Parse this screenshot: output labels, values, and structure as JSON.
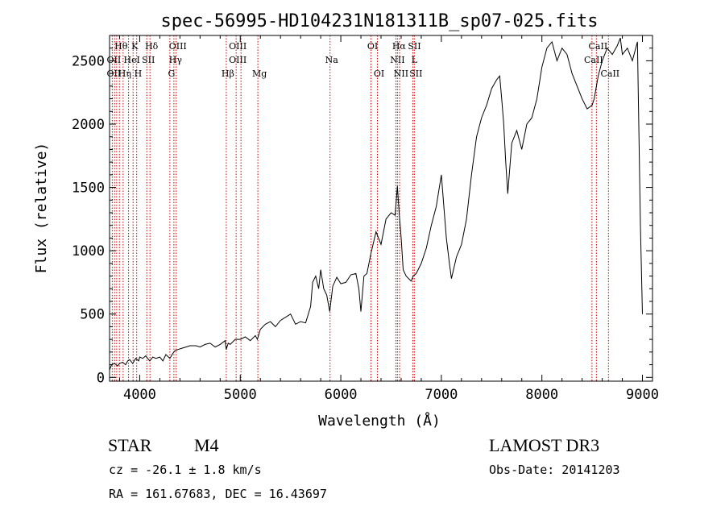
{
  "chart_data": {
    "type": "line",
    "title": "spec-56995-HD104231N181311B_sp07-025.fits",
    "xlabel": "Wavelength (Å)",
    "ylabel": "Flux (relative)",
    "xlim": [
      3700,
      9100
    ],
    "ylim": [
      -30,
      2700
    ],
    "xticks": [
      4000,
      5000,
      6000,
      7000,
      8000,
      9000
    ],
    "yticks": [
      0,
      500,
      1000,
      1500,
      2000,
      2500
    ],
    "series": [
      {
        "name": "spectrum",
        "x": [
          3700,
          3720,
          3750,
          3780,
          3800,
          3830,
          3860,
          3880,
          3900,
          3930,
          3960,
          3990,
          4000,
          4030,
          4060,
          4100,
          4130,
          4160,
          4200,
          4230,
          4260,
          4300,
          4330,
          4350,
          4380,
          4420,
          4460,
          4500,
          4560,
          4600,
          4650,
          4700,
          4750,
          4800,
          4850,
          4860,
          4880,
          4900,
          4950,
          5000,
          5050,
          5100,
          5150,
          5170,
          5200,
          5250,
          5300,
          5350,
          5400,
          5440,
          5460,
          5500,
          5550,
          5600,
          5650,
          5700,
          5720,
          5750,
          5780,
          5800,
          5830,
          5860,
          5890,
          5920,
          5960,
          6000,
          6050,
          6100,
          6150,
          6180,
          6200,
          6230,
          6260,
          6300,
          6350,
          6400,
          6450,
          6500,
          6540,
          6563,
          6580,
          6600,
          6620,
          6650,
          6700,
          6720,
          6750,
          6800,
          6850,
          6900,
          6950,
          7000,
          7030,
          7050,
          7080,
          7100,
          7150,
          7200,
          7250,
          7300,
          7350,
          7400,
          7450,
          7500,
          7550,
          7580,
          7600,
          7620,
          7640,
          7660,
          7680,
          7700,
          7750,
          7800,
          7850,
          7900,
          7950,
          8000,
          8050,
          8100,
          8150,
          8200,
          8250,
          8300,
          8350,
          8400,
          8450,
          8500,
          8520,
          8560,
          8600,
          8650,
          8700,
          8750,
          8780,
          8800,
          8850,
          8900,
          8950,
          8980,
          9000
        ],
        "values": [
          60,
          100,
          110,
          90,
          110,
          120,
          100,
          130,
          140,
          110,
          150,
          130,
          160,
          150,
          170,
          130,
          160,
          150,
          160,
          130,
          180,
          150,
          190,
          210,
          220,
          230,
          240,
          250,
          250,
          240,
          260,
          270,
          240,
          260,
          290,
          220,
          270,
          260,
          300,
          300,
          320,
          290,
          330,
          300,
          380,
          420,
          440,
          400,
          450,
          470,
          480,
          500,
          420,
          440,
          430,
          560,
          750,
          800,
          700,
          850,
          700,
          650,
          520,
          720,
          790,
          740,
          750,
          810,
          820,
          700,
          520,
          800,
          820,
          980,
          1150,
          1050,
          1250,
          1300,
          1280,
          1510,
          1300,
          1100,
          850,
          800,
          760,
          800,
          820,
          900,
          1020,
          1200,
          1350,
          1600,
          1300,
          1100,
          900,
          780,
          950,
          1050,
          1250,
          1600,
          1900,
          2050,
          2150,
          2280,
          2350,
          2380,
          2200,
          2000,
          1700,
          1450,
          1650,
          1850,
          1950,
          1800,
          2000,
          2050,
          2200,
          2450,
          2600,
          2650,
          2500,
          2600,
          2550,
          2400,
          2300,
          2200,
          2120,
          2150,
          2200,
          2380,
          2500,
          2600,
          2550,
          2620,
          2680,
          2550,
          2600,
          2500,
          2650,
          1200,
          500
        ]
      }
    ],
    "line_labels": {
      "row1": [
        {
          "text": "Hθ",
          "x": 3798
        },
        {
          "text": "K",
          "x": 3934
        },
        {
          "text": "Hδ",
          "x": 4102
        },
        {
          "text": "OIII",
          "x": 4363
        },
        {
          "text": "OIII",
          "x": 4959
        },
        {
          "text": "OI",
          "x": 6300
        },
        {
          "text": "Hα",
          "x": 6563
        },
        {
          "text": "SII",
          "x": 6716
        },
        {
          "text": "CaII",
          "x": 8542
        }
      ],
      "row2": [
        {
          "text": "OII",
          "x": 3727
        },
        {
          "text": "He",
          "x": 3889
        },
        {
          "text": "I",
          "x": 3970
        },
        {
          "text": "SII",
          "x": 4070
        },
        {
          "text": "Hγ",
          "x": 4340
        },
        {
          "text": "OIII",
          "x": 4959
        },
        {
          "text": "Na",
          "x": 5893
        },
        {
          "text": "NII",
          "x": 6548
        },
        {
          "text": "L",
          "x": 6716
        },
        {
          "text": "CaII",
          "x": 8498
        }
      ],
      "row3": [
        {
          "text": "OII",
          "x": 3727
        },
        {
          "text": "Hη",
          "x": 3835
        },
        {
          "text": "H",
          "x": 3968
        },
        {
          "text": "G",
          "x": 4300
        },
        {
          "text": "Hβ",
          "x": 4861
        },
        {
          "text": "Mg",
          "x": 5175
        },
        {
          "text": "OI",
          "x": 6364
        },
        {
          "text": "NII",
          "x": 6584
        },
        {
          "text": "SII",
          "x": 6731
        },
        {
          "text": "CaII",
          "x": 8662
        }
      ]
    },
    "line_markers": [
      3727,
      3750,
      3771,
      3798,
      3835,
      3889,
      3934,
      3970,
      4070,
      4102,
      4300,
      4340,
      4363,
      4861,
      4959,
      5007,
      5175,
      5893,
      6300,
      6364,
      6548,
      6563,
      6584,
      6716,
      6731,
      8498,
      8542,
      8662
    ]
  },
  "info": {
    "class_label": "STAR",
    "subclass": "M4",
    "velocity": "cz = -26.1 ± 1.8 km/s",
    "coords": "RA = 161.67683, DEC =  16.43697",
    "survey": "LAMOST DR3",
    "obs_date": "Obs-Date: 20141203"
  },
  "colors": {
    "marker": "#cc0000",
    "line": "#000000"
  }
}
